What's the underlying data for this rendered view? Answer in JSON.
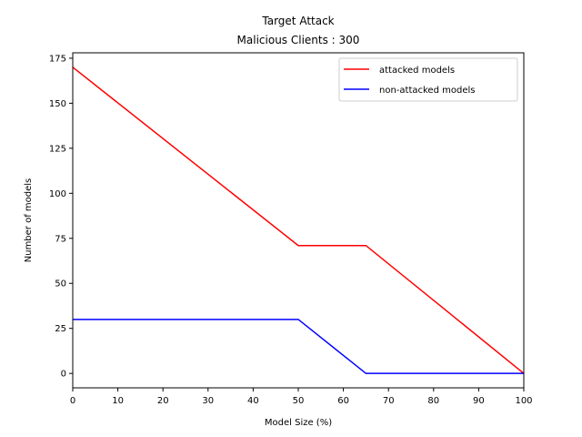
{
  "chart_data": {
    "type": "line",
    "title": "Target Attack",
    "subtitle": "Malicious Clients : 300",
    "xlabel": "Model Size (%)",
    "ylabel": "Number of models",
    "xlim": [
      0,
      100
    ],
    "ylim": [
      -8,
      178
    ],
    "xticks": [
      0,
      10,
      20,
      30,
      40,
      50,
      60,
      70,
      80,
      90,
      100
    ],
    "yticks": [
      0,
      25,
      50,
      75,
      100,
      125,
      150,
      175
    ],
    "grid": false,
    "legend_position": "top-right",
    "series": [
      {
        "name": "attacked models",
        "color": "#ff0000",
        "x": [
          0,
          50,
          65,
          100
        ],
        "y": [
          170,
          71,
          71,
          0
        ]
      },
      {
        "name": "non-attacked models",
        "color": "#0000ff",
        "x": [
          0,
          50,
          65,
          100
        ],
        "y": [
          30,
          30,
          0,
          0
        ]
      }
    ]
  }
}
